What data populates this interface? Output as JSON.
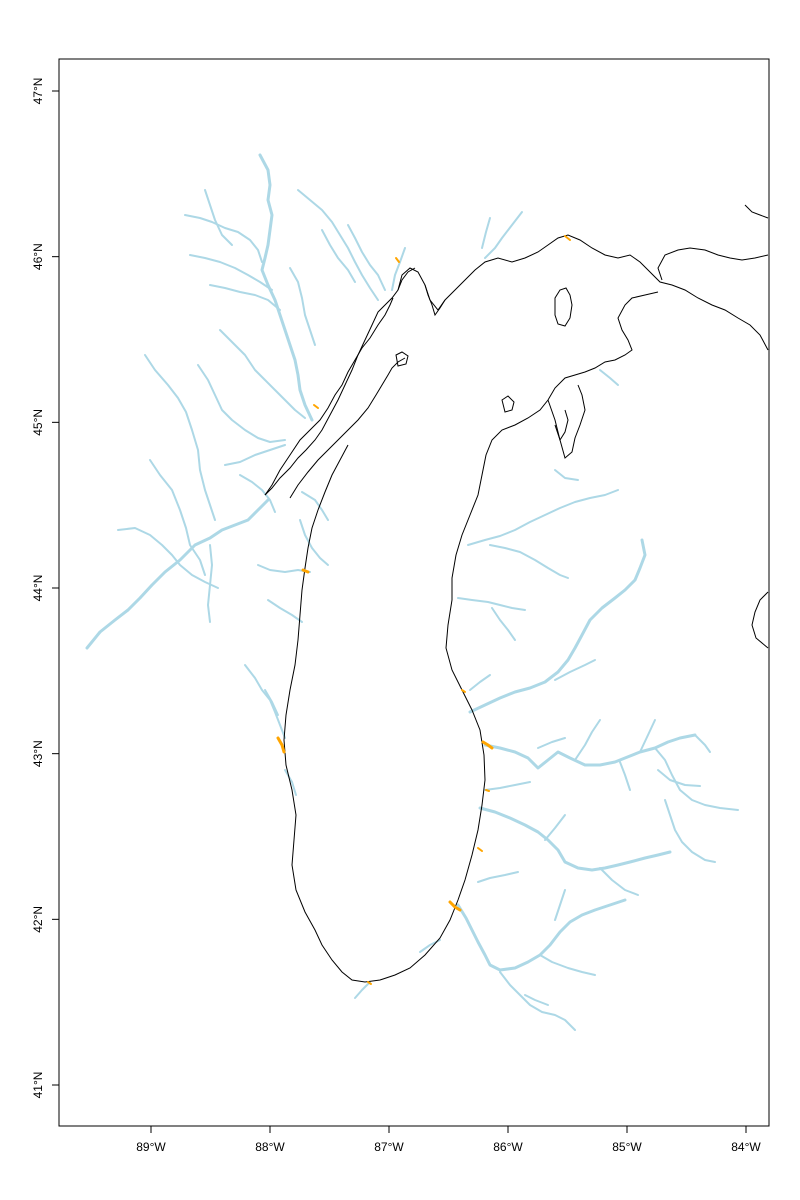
{
  "map": {
    "colors": {
      "river": "#add8e6",
      "shoreline": "#000000",
      "highlight": "#ffa500"
    },
    "x_axis": {
      "ticks": [
        {
          "value": -89,
          "label": "89°W"
        },
        {
          "value": -88,
          "label": "88°W"
        },
        {
          "value": -87,
          "label": "87°W"
        },
        {
          "value": -86,
          "label": "86°W"
        },
        {
          "value": -85,
          "label": "85°W"
        },
        {
          "value": -84,
          "label": "84°W"
        }
      ]
    },
    "y_axis": {
      "ticks": [
        {
          "value": 41,
          "label": "41°N"
        },
        {
          "value": 42,
          "label": "42°N"
        },
        {
          "value": 43,
          "label": "43°N"
        },
        {
          "value": 44,
          "label": "44°N"
        },
        {
          "value": 45,
          "label": "45°N"
        },
        {
          "value": 46,
          "label": "46°N"
        },
        {
          "value": 47,
          "label": "47°N"
        }
      ]
    }
  }
}
